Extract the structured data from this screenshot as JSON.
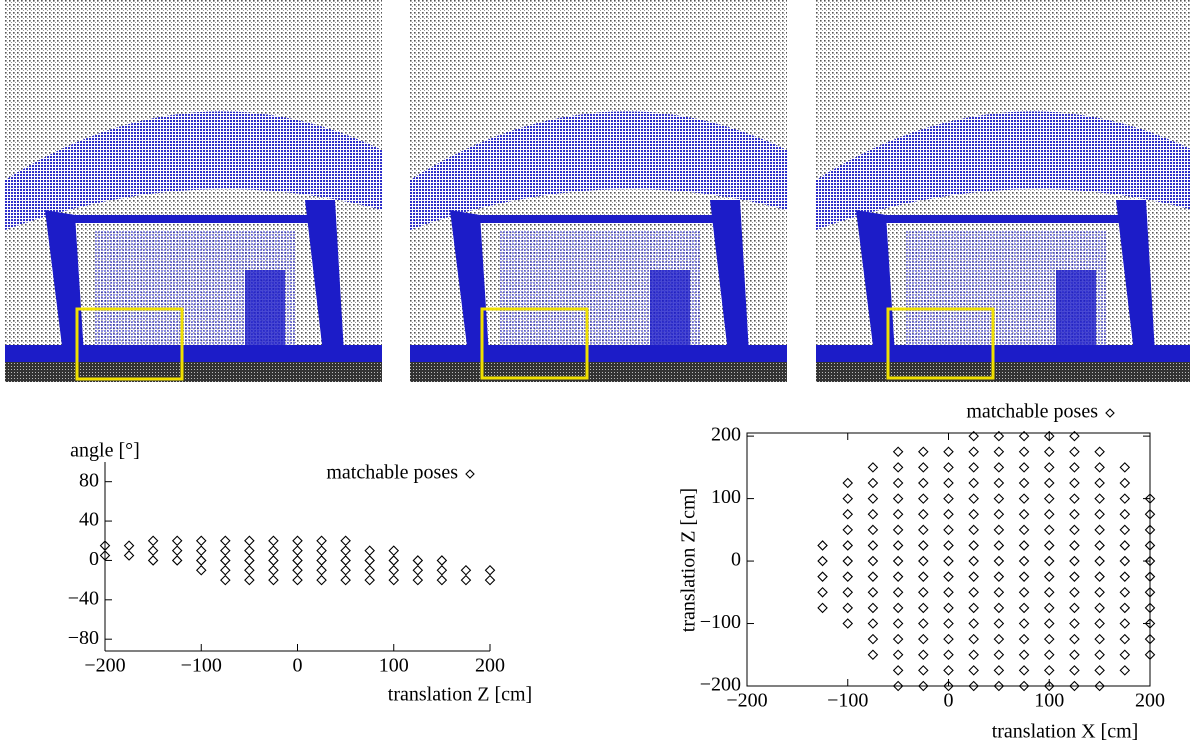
{
  "chart_data": [
    {
      "type": "scatter",
      "x_label": "translation Z [cm]",
      "y_label": "angle [°]",
      "xlim": [
        -200,
        200
      ],
      "ylim": [
        -92,
        100
      ],
      "xticks": [
        {
          "value": -200,
          "label": "−200"
        },
        {
          "value": -100,
          "label": "−100"
        },
        0,
        100,
        200
      ],
      "yticks": [
        {
          "value": -80,
          "label": "−80"
        },
        {
          "value": -40,
          "label": "−40"
        },
        0,
        40,
        80
      ],
      "series": [
        {
          "name": "matchable poses",
          "color": "#000000",
          "x": [
            -200,
            -200,
            -175,
            -175,
            -150,
            -150,
            -150,
            -125,
            -125,
            -125,
            -100,
            -100,
            -100,
            -100,
            -75,
            -75,
            -75,
            -75,
            -75,
            -50,
            -50,
            -50,
            -50,
            -50,
            -25,
            -25,
            -25,
            -25,
            -25,
            0,
            0,
            0,
            0,
            0,
            25,
            25,
            25,
            25,
            25,
            50,
            50,
            50,
            50,
            50,
            75,
            75,
            75,
            75,
            100,
            100,
            100,
            100,
            125,
            125,
            125,
            150,
            150,
            150,
            175,
            175,
            200,
            200
          ],
          "values": [
            5,
            15,
            5,
            15,
            0,
            10,
            20,
            0,
            10,
            20,
            -10,
            0,
            10,
            20,
            -20,
            -10,
            0,
            10,
            20,
            -20,
            -10,
            0,
            10,
            20,
            -20,
            -10,
            0,
            10,
            20,
            -20,
            -10,
            0,
            10,
            20,
            -20,
            -10,
            0,
            10,
            20,
            -20,
            -10,
            0,
            10,
            20,
            -20,
            -10,
            0,
            10,
            -20,
            -10,
            0,
            10,
            -20,
            -10,
            0,
            -20,
            -10,
            0,
            -20,
            -10,
            -20,
            -10
          ]
        }
      ]
    },
    {
      "type": "scatter",
      "x_label": "translation X [cm]",
      "y_label": "translation Z [cm]",
      "xlim": [
        -200,
        200
      ],
      "ylim": [
        -200,
        205
      ],
      "xticks": [
        {
          "value": -200,
          "label": "−200"
        },
        {
          "value": -100,
          "label": "−100"
        },
        0,
        100,
        200
      ],
      "yticks": [
        {
          "value": -200,
          "label": "−200"
        },
        {
          "value": -100,
          "label": "−100"
        },
        0,
        100,
        200
      ],
      "series": [
        {
          "name": "matchable poses",
          "color": "#000000",
          "x": [
            -125,
            -125,
            -125,
            -125,
            -125,
            -100,
            -100,
            -100,
            -100,
            -100,
            -100,
            -100,
            -100,
            -100,
            -100,
            -75,
            -75,
            -75,
            -75,
            -75,
            -75,
            -75,
            -75,
            -75,
            -75,
            -75,
            -75,
            -75,
            -50,
            -50,
            -50,
            -50,
            -50,
            -50,
            -50,
            -50,
            -50,
            -50,
            -50,
            -50,
            -50,
            -50,
            -50,
            -50,
            -25,
            -25,
            -25,
            -25,
            -25,
            -25,
            -25,
            -25,
            -25,
            -25,
            -25,
            -25,
            -25,
            -25,
            -25,
            -25,
            0,
            0,
            0,
            0,
            0,
            0,
            0,
            0,
            0,
            0,
            0,
            0,
            0,
            0,
            0,
            0,
            25,
            25,
            25,
            25,
            25,
            25,
            25,
            25,
            25,
            25,
            25,
            25,
            25,
            25,
            25,
            25,
            25,
            50,
            50,
            50,
            50,
            50,
            50,
            50,
            50,
            50,
            50,
            50,
            50,
            50,
            50,
            50,
            50,
            50,
            75,
            75,
            75,
            75,
            75,
            75,
            75,
            75,
            75,
            75,
            75,
            75,
            75,
            75,
            75,
            75,
            75,
            100,
            100,
            100,
            100,
            100,
            100,
            100,
            100,
            100,
            100,
            100,
            100,
            100,
            100,
            100,
            100,
            100,
            125,
            125,
            125,
            125,
            125,
            125,
            125,
            125,
            125,
            125,
            125,
            125,
            125,
            125,
            125,
            125,
            125,
            150,
            150,
            150,
            150,
            150,
            150,
            150,
            150,
            150,
            150,
            150,
            150,
            150,
            150,
            150,
            150,
            175,
            175,
            175,
            175,
            175,
            175,
            175,
            175,
            175,
            175,
            175,
            175,
            175,
            175,
            200,
            200,
            200,
            200,
            200,
            200,
            200,
            200,
            200,
            200,
            200
          ],
          "values": [
            -75,
            -50,
            -25,
            0,
            25,
            -100,
            -75,
            -50,
            -25,
            0,
            25,
            50,
            75,
            100,
            125,
            -150,
            -125,
            -100,
            -75,
            -50,
            -25,
            0,
            25,
            50,
            75,
            100,
            125,
            150,
            -200,
            -175,
            -150,
            -125,
            -100,
            -75,
            -50,
            -25,
            0,
            25,
            50,
            75,
            100,
            125,
            150,
            175,
            -200,
            -175,
            -150,
            -125,
            -100,
            -75,
            -50,
            -25,
            0,
            25,
            50,
            75,
            100,
            125,
            150,
            175,
            -200,
            -175,
            -150,
            -125,
            -100,
            -75,
            -50,
            -25,
            0,
            25,
            50,
            75,
            100,
            125,
            150,
            175,
            -200,
            -175,
            -150,
            -125,
            -100,
            -75,
            -50,
            -25,
            0,
            25,
            50,
            75,
            100,
            125,
            150,
            175,
            200,
            -200,
            -175,
            -150,
            -125,
            -100,
            -75,
            -50,
            -25,
            0,
            25,
            50,
            75,
            100,
            125,
            150,
            175,
            200,
            -200,
            -175,
            -150,
            -125,
            -100,
            -75,
            -50,
            -25,
            0,
            25,
            50,
            75,
            100,
            125,
            150,
            175,
            200,
            -200,
            -175,
            -150,
            -125,
            -100,
            -75,
            -50,
            -25,
            0,
            25,
            50,
            75,
            100,
            125,
            150,
            175,
            200,
            -200,
            -175,
            -150,
            -125,
            -100,
            -75,
            -50,
            -25,
            0,
            25,
            50,
            75,
            100,
            125,
            150,
            175,
            200,
            -200,
            -175,
            -150,
            -125,
            -100,
            -75,
            -50,
            -25,
            0,
            25,
            50,
            75,
            100,
            125,
            150,
            175,
            -175,
            -150,
            -125,
            -100,
            -75,
            -50,
            -25,
            0,
            25,
            50,
            75,
            100,
            125,
            150,
            -150,
            -125,
            -100,
            -75,
            -50,
            -25,
            0,
            25,
            50,
            75,
            100
          ]
        }
      ]
    }
  ]
}
